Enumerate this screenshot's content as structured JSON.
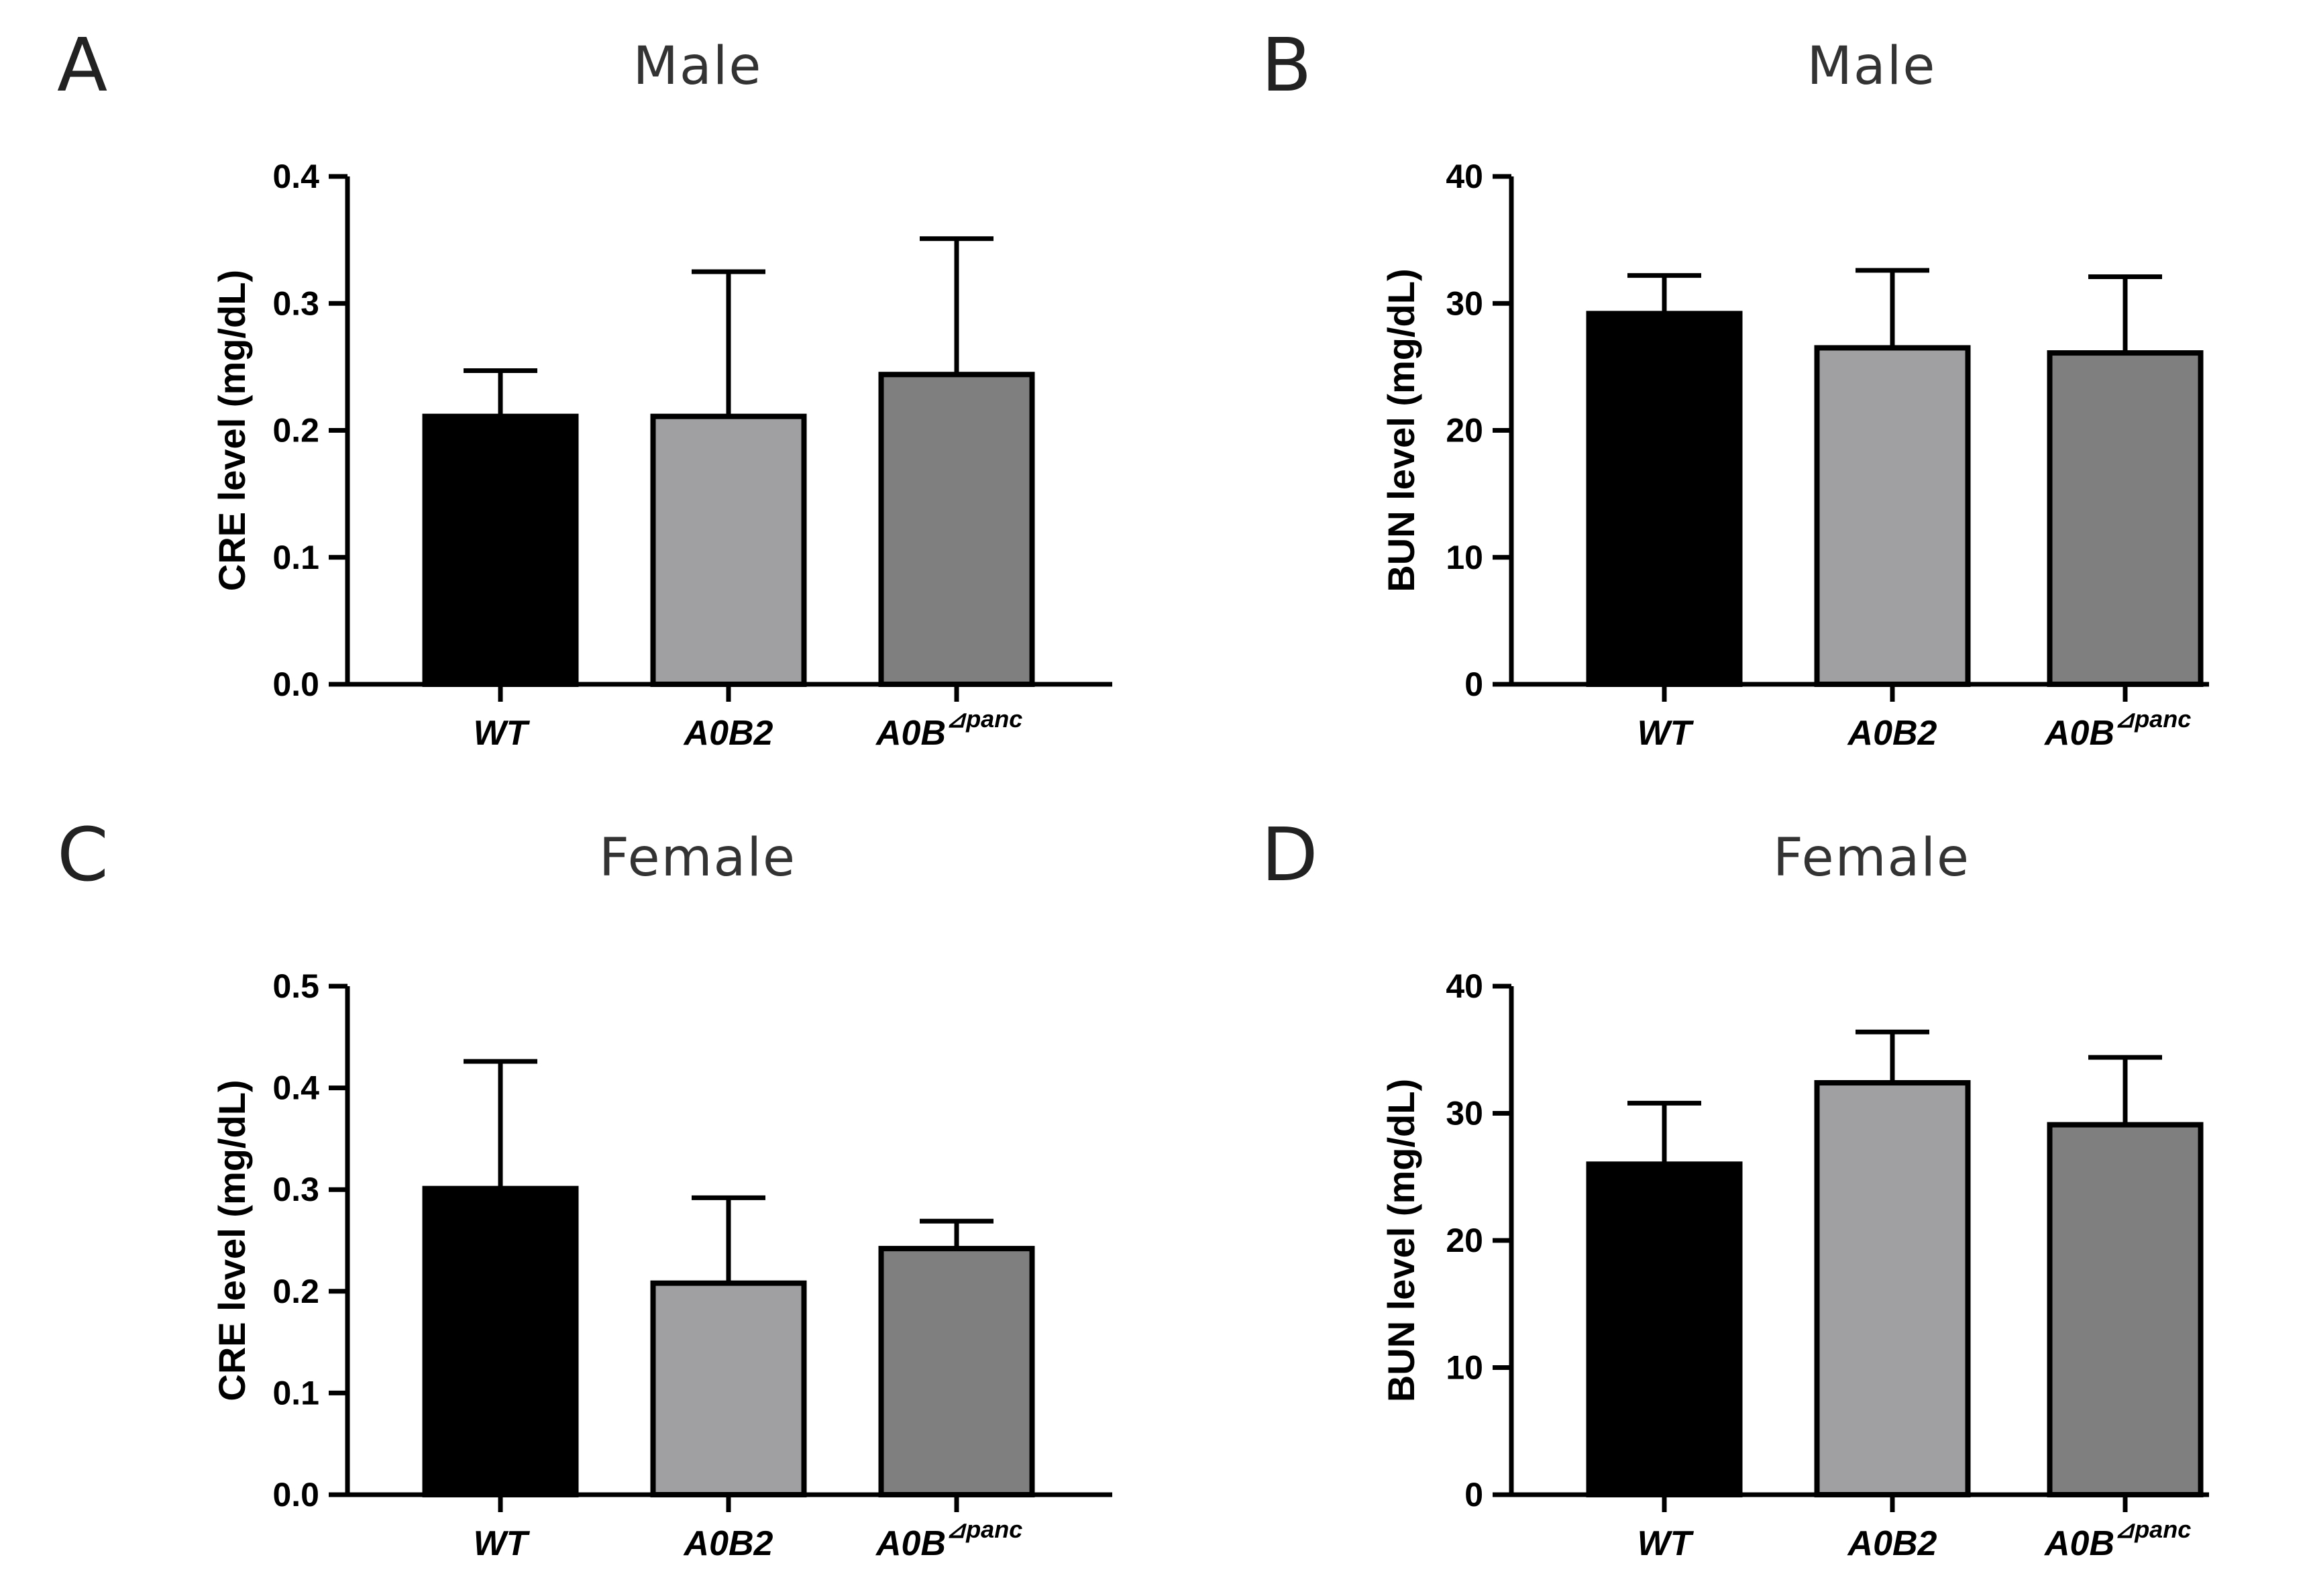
{
  "colors": {
    "WT": "#000000",
    "A0B2": "#a0a0a2",
    "A0B_panc": "#7f7f7f",
    "edge": "#000000"
  },
  "chart_data": [
    {
      "panel": "A",
      "type": "bar",
      "title": "Male",
      "xlabel": "",
      "ylabel": "CRE level (mg/dL)",
      "ylim": [
        0,
        0.4
      ],
      "yticks": [
        "0.0",
        "0.1",
        "0.2",
        "0.3",
        "0.4"
      ],
      "categories": [
        {
          "base": "WT",
          "sup": ""
        },
        {
          "base": "A0B2",
          "sup": ""
        },
        {
          "base": "A0B",
          "sup": "⊿panc"
        }
      ],
      "values": [
        0.211,
        0.211,
        0.244
      ],
      "errors": [
        0.036,
        0.114,
        0.107
      ]
    },
    {
      "panel": "B",
      "type": "bar",
      "title": "Male",
      "xlabel": "",
      "ylabel": "BUN level (mg/dL)",
      "ylim": [
        0,
        40
      ],
      "yticks": [
        "0",
        "10",
        "20",
        "30",
        "40"
      ],
      "categories": [
        {
          "base": "WT",
          "sup": ""
        },
        {
          "base": "A0B2",
          "sup": ""
        },
        {
          "base": "A0B",
          "sup": "⊿panc"
        }
      ],
      "values": [
        29.2,
        26.5,
        26.1
      ],
      "errors": [
        3.0,
        6.1,
        6.0
      ]
    },
    {
      "panel": "C",
      "type": "bar",
      "title": "Female",
      "xlabel": "",
      "ylabel": "CRE level (mg/dL)",
      "ylim": [
        0,
        0.5
      ],
      "yticks": [
        "0.0",
        "0.1",
        "0.2",
        "0.3",
        "0.4",
        "0.5"
      ],
      "categories": [
        {
          "base": "WT",
          "sup": ""
        },
        {
          "base": "A0B2",
          "sup": ""
        },
        {
          "base": "A0B",
          "sup": "⊿panc"
        }
      ],
      "values": [
        0.301,
        0.208,
        0.242
      ],
      "errors": [
        0.125,
        0.084,
        0.027
      ]
    },
    {
      "panel": "D",
      "type": "bar",
      "title": "Female",
      "xlabel": "",
      "ylabel": "BUN level (mg/dL)",
      "ylim": [
        0,
        40
      ],
      "yticks": [
        "0",
        "10",
        "20",
        "30",
        "40"
      ],
      "categories": [
        {
          "base": "WT",
          "sup": ""
        },
        {
          "base": "A0B2",
          "sup": ""
        },
        {
          "base": "A0B",
          "sup": "⊿panc"
        }
      ],
      "values": [
        26.0,
        32.4,
        29.1
      ],
      "errors": [
        4.8,
        4.0,
        5.3
      ]
    }
  ]
}
